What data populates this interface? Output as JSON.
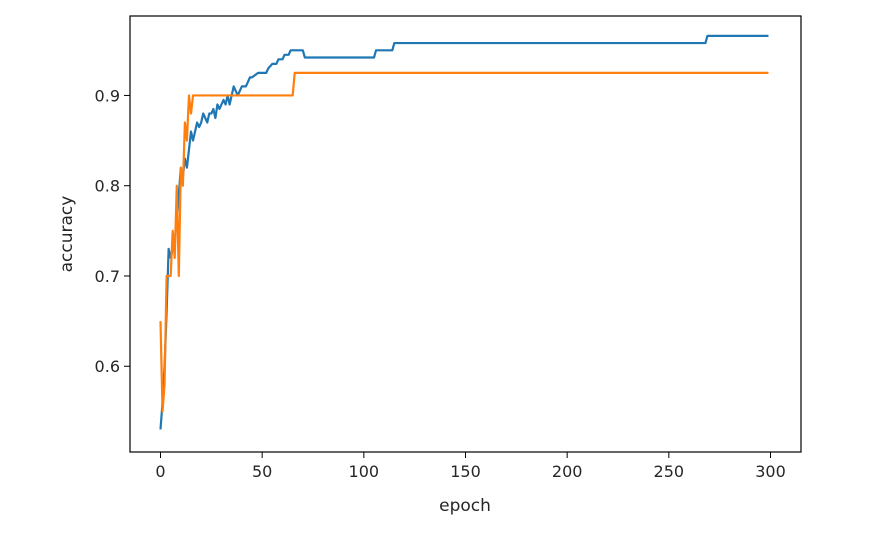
{
  "chart_data": {
    "type": "line",
    "title": "",
    "xlabel": "epoch",
    "ylabel": "accuracy",
    "xlim": [
      -15,
      315
    ],
    "ylim": [
      0.505,
      0.988
    ],
    "xticks": [
      0,
      50,
      100,
      150,
      200,
      250,
      300
    ],
    "yticks": [
      0.6,
      0.7,
      0.8,
      0.9
    ],
    "ytick_labels": [
      "0.6",
      "0.7",
      "0.8",
      "0.9"
    ],
    "grid": false,
    "legend": "none",
    "series": [
      {
        "color": "#1f77b4",
        "points": [
          [
            0,
            0.53
          ],
          [
            1,
            0.56
          ],
          [
            2,
            0.6
          ],
          [
            3,
            0.66
          ],
          [
            4,
            0.73
          ],
          [
            5,
            0.72
          ],
          [
            6,
            0.73
          ],
          [
            7,
            0.74
          ],
          [
            8,
            0.76
          ],
          [
            9,
            0.79
          ],
          [
            10,
            0.82
          ],
          [
            11,
            0.81
          ],
          [
            12,
            0.83
          ],
          [
            13,
            0.82
          ],
          [
            14,
            0.84
          ],
          [
            15,
            0.86
          ],
          [
            16,
            0.85
          ],
          [
            17,
            0.86
          ],
          [
            18,
            0.87
          ],
          [
            19,
            0.865
          ],
          [
            20,
            0.87
          ],
          [
            21,
            0.88
          ],
          [
            22,
            0.875
          ],
          [
            23,
            0.87
          ],
          [
            24,
            0.88
          ],
          [
            25,
            0.88
          ],
          [
            26,
            0.885
          ],
          [
            27,
            0.875
          ],
          [
            28,
            0.89
          ],
          [
            29,
            0.885
          ],
          [
            30,
            0.89
          ],
          [
            31,
            0.895
          ],
          [
            32,
            0.89
          ],
          [
            33,
            0.9
          ],
          [
            34,
            0.89
          ],
          [
            35,
            0.9
          ],
          [
            36,
            0.91
          ],
          [
            37,
            0.905
          ],
          [
            38,
            0.9
          ],
          [
            39,
            0.905
          ],
          [
            40,
            0.91
          ],
          [
            41,
            0.91
          ],
          [
            42,
            0.91
          ],
          [
            43,
            0.915
          ],
          [
            44,
            0.92
          ],
          [
            45,
            0.92
          ],
          [
            48,
            0.925
          ],
          [
            52,
            0.925
          ],
          [
            53,
            0.93
          ],
          [
            55,
            0.935
          ],
          [
            57,
            0.935
          ],
          [
            58,
            0.94
          ],
          [
            60,
            0.94
          ],
          [
            61,
            0.945
          ],
          [
            63,
            0.945
          ],
          [
            64,
            0.95
          ],
          [
            70,
            0.95
          ],
          [
            71,
            0.942
          ],
          [
            105,
            0.942
          ],
          [
            106,
            0.95
          ],
          [
            114,
            0.95
          ],
          [
            115,
            0.958
          ],
          [
            268,
            0.958
          ],
          [
            269,
            0.966
          ],
          [
            299,
            0.966
          ]
        ]
      },
      {
        "color": "#ff7f0e",
        "points": [
          [
            0,
            0.65
          ],
          [
            1,
            0.55
          ],
          [
            2,
            0.58
          ],
          [
            3,
            0.7
          ],
          [
            4,
            0.7
          ],
          [
            5,
            0.7
          ],
          [
            6,
            0.75
          ],
          [
            7,
            0.72
          ],
          [
            8,
            0.8
          ],
          [
            9,
            0.7
          ],
          [
            10,
            0.82
          ],
          [
            11,
            0.8
          ],
          [
            12,
            0.87
          ],
          [
            13,
            0.85
          ],
          [
            14,
            0.9
          ],
          [
            15,
            0.88
          ],
          [
            16,
            0.9
          ],
          [
            65,
            0.9
          ],
          [
            66,
            0.925
          ],
          [
            299,
            0.925
          ]
        ]
      }
    ]
  }
}
